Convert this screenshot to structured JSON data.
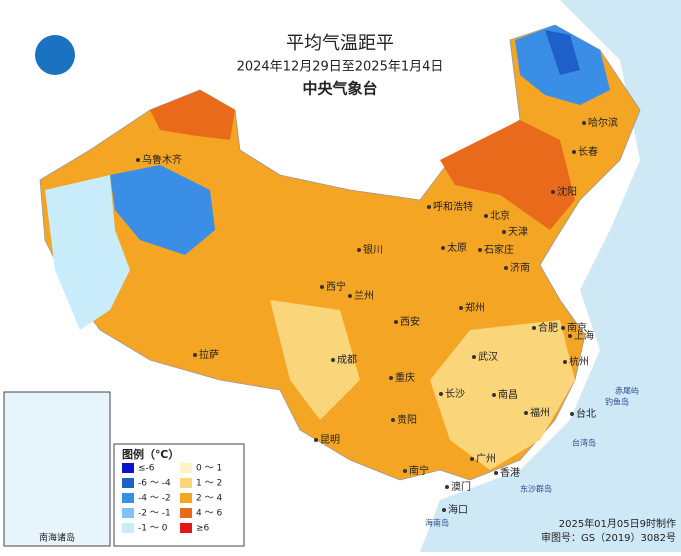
{
  "header": {
    "title": "平均气温距平",
    "period": "2024年12月29日至2025年1月4日",
    "agency": "中央气象台"
  },
  "legend": {
    "title": "图例（℃）",
    "items": [
      {
        "label": "≤-6",
        "color": "#0a14c8"
      },
      {
        "label": "-6 ～ -4",
        "color": "#1f5fc8"
      },
      {
        "label": "-4 ～ -2",
        "color": "#3a8ee6"
      },
      {
        "label": "-2 ～ -1",
        "color": "#80c2f2"
      },
      {
        "label": "-1 ～ 0",
        "color": "#c8ecfa"
      },
      {
        "label": "0 ～ 1",
        "color": "#fdf3c4"
      },
      {
        "label": "1 ～ 2",
        "color": "#fad57a"
      },
      {
        "label": "2 ～ 4",
        "color": "#f5a524"
      },
      {
        "label": "4 ～ 6",
        "color": "#ea6a1c"
      },
      {
        "label": "≥6",
        "color": "#e01818"
      }
    ]
  },
  "cities": [
    "哈尔滨",
    "长春",
    "沈阳",
    "呼和浩特",
    "北京",
    "天津",
    "太原",
    "石家庄",
    "济南",
    "银川",
    "西宁",
    "兰州",
    "郑州",
    "西安",
    "合肥",
    "南京",
    "上海",
    "成都",
    "武汉",
    "杭州",
    "重庆",
    "长沙",
    "南昌",
    "福州",
    "台北",
    "贵阳",
    "昆明",
    "南宁",
    "广州",
    "香港",
    "澳门",
    "海口",
    "拉萨",
    "乌鲁木齐"
  ],
  "islands": [
    "东沙群岛",
    "钓鱼岛",
    "赤尾屿",
    "台湾岛",
    "海南岛"
  ],
  "inset": {
    "label": "南海诸岛"
  },
  "footer": {
    "made": "2025年01月05日9时制作",
    "approval": "审图号：GS（2019）3082号"
  }
}
